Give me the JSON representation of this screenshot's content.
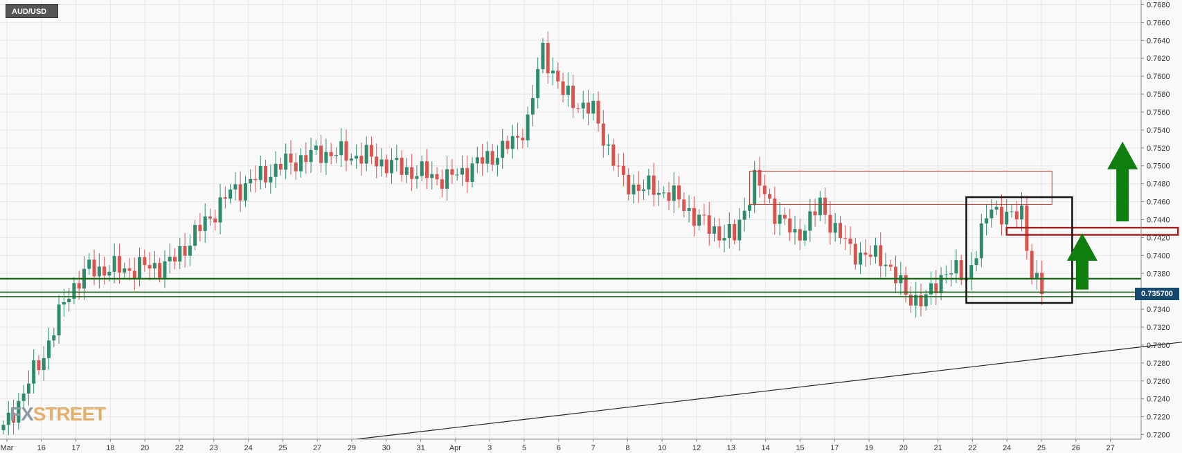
{
  "symbol": "AUD/USD",
  "watermark": {
    "part1": "FX",
    "part2": "STREET"
  },
  "current_price_label": "0.735700",
  "colors": {
    "up": "#2e8b6c",
    "down": "#d9534f",
    "support": "#1e6b1e",
    "zone": "#c0392b",
    "arrow": "#0e7f0e",
    "box": "#111111",
    "price_tag": "#154a6e"
  },
  "chart_data": {
    "type": "candlestick",
    "title": "AUD/USD",
    "ylim": [
      0.7195,
      0.7685
    ],
    "y_ticks": [
      "0.7200",
      "0.7220",
      "0.7240",
      "0.7260",
      "0.7280",
      "0.7300",
      "0.7320",
      "0.7340",
      "0.7360",
      "0.7380",
      "0.7400",
      "0.7420",
      "0.7440",
      "0.7460",
      "0.7480",
      "0.7500",
      "0.7520",
      "0.7540",
      "0.7560",
      "0.7580",
      "0.7600",
      "0.7620",
      "0.7640",
      "0.7660",
      "0.7680"
    ],
    "x_ticks": [
      "Mar",
      "16",
      "17",
      "18",
      "20",
      "22",
      "23",
      "24",
      "25",
      "27",
      "29",
      "30",
      "31",
      "Apr",
      "3",
      "5",
      "6",
      "7",
      "8",
      "10",
      "12",
      "13",
      "14",
      "15",
      "17",
      "19",
      "20",
      "21",
      "22",
      "24",
      "25",
      "26",
      "27"
    ],
    "grid": true,
    "last_price": 0.7357,
    "anchors": [
      {
        "t": 0,
        "p": 0.7205
      },
      {
        "t": 8,
        "p": 0.729
      },
      {
        "t": 13,
        "p": 0.736
      },
      {
        "t": 17,
        "p": 0.7385
      },
      {
        "t": 25,
        "p": 0.7385
      },
      {
        "t": 33,
        "p": 0.739
      },
      {
        "t": 45,
        "p": 0.747
      },
      {
        "t": 55,
        "p": 0.75
      },
      {
        "t": 63,
        "p": 0.7515
      },
      {
        "t": 72,
        "p": 0.751
      },
      {
        "t": 80,
        "p": 0.7495
      },
      {
        "t": 88,
        "p": 0.7485
      },
      {
        "t": 95,
        "p": 0.7505
      },
      {
        "t": 101,
        "p": 0.7525
      },
      {
        "t": 104,
        "p": 0.755
      },
      {
        "t": 107,
        "p": 0.763
      },
      {
        "t": 111,
        "p": 0.758
      },
      {
        "t": 117,
        "p": 0.756
      },
      {
        "t": 123,
        "p": 0.748
      },
      {
        "t": 132,
        "p": 0.747
      },
      {
        "t": 140,
        "p": 0.743
      },
      {
        "t": 145,
        "p": 0.742
      },
      {
        "t": 149,
        "p": 0.7485
      },
      {
        "t": 153,
        "p": 0.745
      },
      {
        "t": 157,
        "p": 0.742
      },
      {
        "t": 162,
        "p": 0.7455
      },
      {
        "t": 168,
        "p": 0.7405
      },
      {
        "t": 175,
        "p": 0.7395
      },
      {
        "t": 179,
        "p": 0.7355
      },
      {
        "t": 183,
        "p": 0.735
      },
      {
        "t": 187,
        "p": 0.7385
      },
      {
        "t": 191,
        "p": 0.7375
      },
      {
        "t": 196,
        "p": 0.7455
      },
      {
        "t": 200,
        "p": 0.744
      },
      {
        "t": 202,
        "p": 0.745
      },
      {
        "t": 204,
        "p": 0.738
      },
      {
        "t": 206,
        "p": 0.7357
      }
    ],
    "start_t": 0,
    "end_t": 206,
    "support_levels": [
      0.7374,
      0.7359,
      0.7354
    ],
    "resistance_zone": {
      "from_t": 148,
      "to_t": 208,
      "low": 0.7457,
      "high": 0.7494
    },
    "minor_zone": {
      "from_t": 199,
      "to_t": 233,
      "low": 0.7423,
      "high": 0.7431
    },
    "box": {
      "from_t": 191,
      "to_t": 212,
      "low": 0.7347,
      "high": 0.7465
    },
    "trendline": [
      {
        "t": 70,
        "p": 0.7195
      },
      {
        "t": 247,
        "p": 0.7312
      }
    ],
    "arrows": [
      {
        "t": 214,
        "base": 0.7362,
        "tip": 0.7425
      },
      {
        "t": 222,
        "base": 0.7438,
        "tip": 0.7527
      }
    ]
  }
}
